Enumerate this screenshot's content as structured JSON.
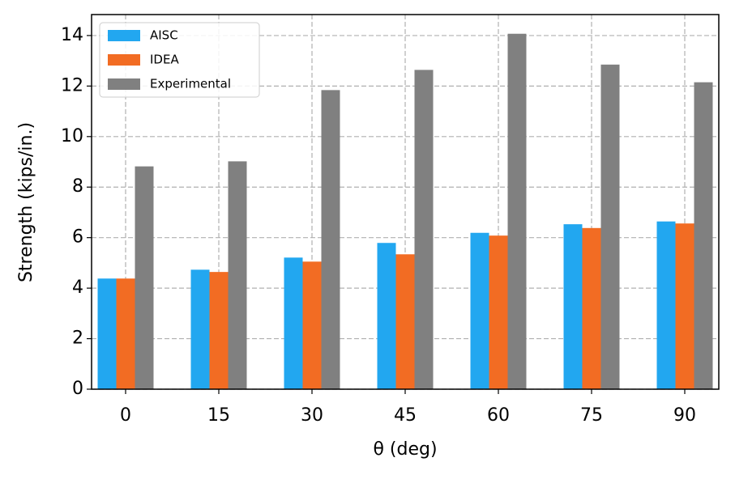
{
  "chart_data": {
    "type": "bar",
    "x_label": "θ (deg)",
    "y_label": "Strength (kips/in.)",
    "categories": [
      "0",
      "15",
      "30",
      "45",
      "60",
      "75",
      "90"
    ],
    "series": [
      {
        "name": "AISC",
        "color": "#22a7f0",
        "values": [
          4.38,
          4.73,
          5.21,
          5.79,
          6.19,
          6.53,
          6.64
        ]
      },
      {
        "name": "IDEA",
        "color": "#f26c23",
        "values": [
          4.38,
          4.64,
          5.05,
          5.34,
          6.08,
          6.38,
          6.56
        ]
      },
      {
        "name": "Experimental",
        "color": "#808080",
        "values": [
          8.82,
          9.02,
          11.84,
          12.64,
          14.07,
          12.85,
          12.15
        ]
      }
    ],
    "ylim": [
      0,
      14.83
    ],
    "yticks": [
      0,
      2,
      4,
      6,
      8,
      10,
      12,
      14
    ],
    "grid": true,
    "legend": "upper left"
  }
}
